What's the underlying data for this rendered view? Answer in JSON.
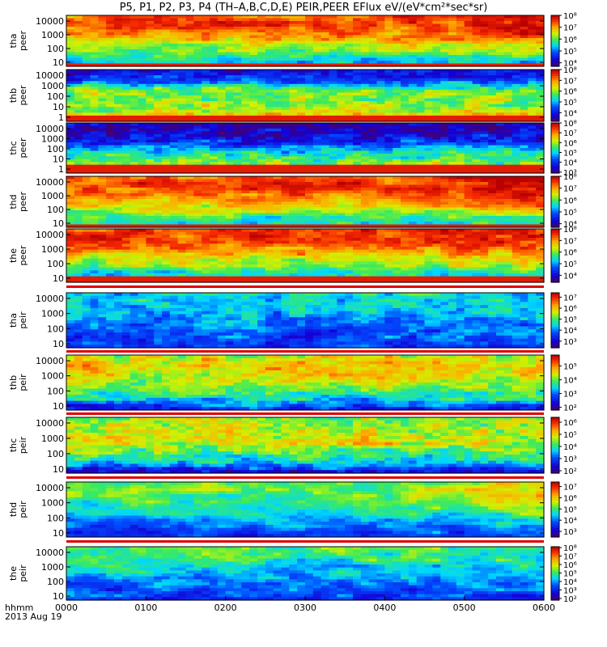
{
  "title": "P5, P1, P2, P3, P4 (TH–A,B,C,D,E) PEIR,PEER EFlux eV/(eV*cm²*sec*sr)",
  "x_header": "hhmm",
  "x_date": "2013 Aug 19",
  "chart_data": {
    "type": "heatmap",
    "x_ticks": [
      "0000",
      "0100",
      "0200",
      "0300",
      "0400",
      "0500",
      "0600"
    ],
    "xlim": [
      "0000",
      "0600"
    ],
    "y_scale": "log",
    "colorbar_scale": "log",
    "panels": [
      {
        "name": "tha peer",
        "label1": "tha",
        "label2": "peer",
        "yticks": [
          "10",
          "100",
          "1000",
          "10000"
        ],
        "cbar_ticks": [
          "10⁴",
          "10⁵",
          "10⁶",
          "10⁷",
          "10⁸"
        ],
        "cbar_min_exp": 3.7,
        "cbar_max_exp": 8.0
      },
      {
        "name": "thb peer",
        "label1": "thb",
        "label2": "peer",
        "yticks": [
          "1",
          "10",
          "100",
          "1000",
          "10000"
        ],
        "cbar_ticks": [
          "10⁴",
          "10⁵",
          "10⁶",
          "10⁷",
          "10⁸"
        ],
        "cbar_min_exp": 3.2,
        "cbar_max_exp": 8.0
      },
      {
        "name": "thc peer",
        "label1": "thc",
        "label2": "peer",
        "yticks": [
          "1",
          "10",
          "100",
          "1000",
          "10000"
        ],
        "cbar_ticks": [
          "10³",
          "10⁴",
          "10⁵",
          "10⁶",
          "10⁷",
          "10⁸"
        ],
        "cbar_min_exp": 2.9,
        "cbar_max_exp": 8.0
      },
      {
        "name": "thd peer",
        "label1": "thd",
        "label2": "peer",
        "yticks": [
          "10",
          "100",
          "1000",
          "10000"
        ],
        "cbar_ticks": [
          "10⁴",
          "10⁵",
          "10⁶",
          "10⁷",
          "10⁸"
        ],
        "cbar_min_exp": 3.7,
        "cbar_max_exp": 8.0
      },
      {
        "name": "the peer",
        "label1": "the",
        "label2": "peer",
        "yticks": [
          "10",
          "100",
          "1000",
          "10000"
        ],
        "cbar_ticks": [
          "10⁴",
          "10⁵",
          "10⁶",
          "10⁷",
          "10⁸"
        ],
        "cbar_min_exp": 3.4,
        "cbar_max_exp": 8.0
      },
      {
        "name": "tha peir",
        "label1": "tha",
        "label2": "peir",
        "yticks": [
          "10",
          "100",
          "1000",
          "10000"
        ],
        "cbar_ticks": [
          "10³",
          "10⁴",
          "10⁵",
          "10⁶",
          "10⁷"
        ],
        "cbar_min_exp": 2.4,
        "cbar_max_exp": 7.4
      },
      {
        "name": "thb peir",
        "label1": "thb",
        "label2": "peir",
        "yticks": [
          "10",
          "100",
          "1000",
          "10000"
        ],
        "cbar_ticks": [
          "10²",
          "10³",
          "10⁴",
          "10⁵"
        ],
        "cbar_min_exp": 1.8,
        "cbar_max_exp": 5.8
      },
      {
        "name": "thc peir",
        "label1": "thc",
        "label2": "peir",
        "yticks": [
          "10",
          "100",
          "1000",
          "10000"
        ],
        "cbar_ticks": [
          "10²",
          "10³",
          "10⁴",
          "10⁵",
          "10⁶"
        ],
        "cbar_min_exp": 1.8,
        "cbar_max_exp": 6.4
      },
      {
        "name": "thd peir",
        "label1": "thd",
        "label2": "peir",
        "yticks": [
          "10",
          "100",
          "1000",
          "10000"
        ],
        "cbar_ticks": [
          "10³",
          "10⁴",
          "10⁵",
          "10⁶",
          "10⁷"
        ],
        "cbar_min_exp": 2.5,
        "cbar_max_exp": 7.4
      },
      {
        "name": "the peir",
        "label1": "the",
        "label2": "peir",
        "yticks": [
          "10",
          "100",
          "1000",
          "10000"
        ],
        "cbar_ticks": [
          "10²",
          "10³",
          "10⁴",
          "10⁵",
          "10⁶",
          "10⁷",
          "10⁸"
        ],
        "cbar_min_exp": 1.8,
        "cbar_max_exp": 8.1
      }
    ]
  }
}
